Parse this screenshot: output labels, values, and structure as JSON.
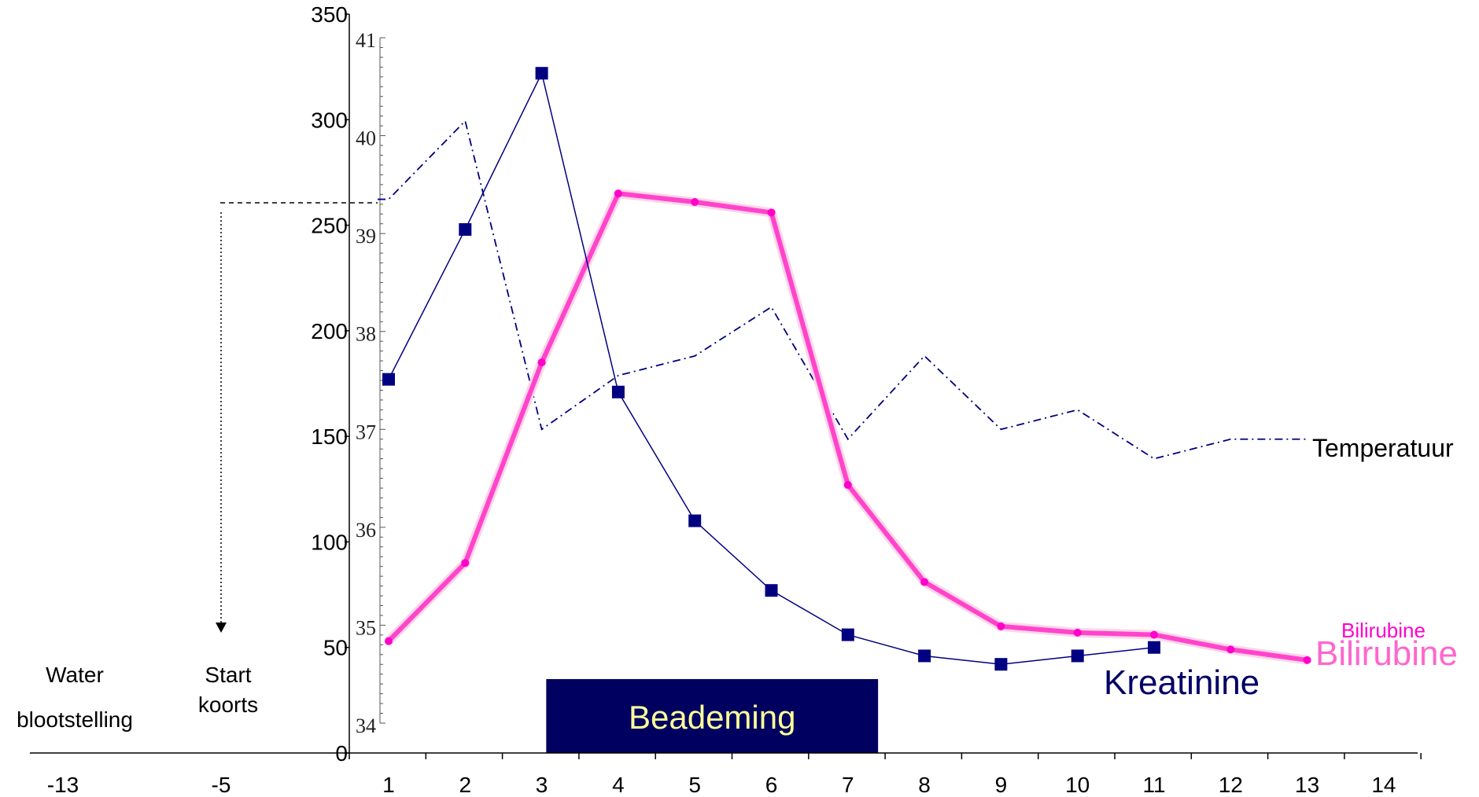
{
  "chart_data": {
    "type": "line",
    "x": [
      1,
      2,
      3,
      4,
      5,
      6,
      7,
      8,
      9,
      10,
      11,
      12,
      13
    ],
    "x_ticks": [
      "-13",
      "-5",
      "1",
      "2",
      "3",
      "4",
      "5",
      "6",
      "7",
      "8",
      "9",
      "10",
      "11",
      "12",
      "13",
      "14"
    ],
    "y_left": {
      "ticks": [
        "0",
        "50",
        "100",
        "150",
        "200",
        "250",
        "300",
        "350"
      ],
      "ylim": [
        0,
        350
      ]
    },
    "y_right": {
      "ticks": [
        "34",
        "35",
        "36",
        "37",
        "38",
        "39",
        "40",
        "41"
      ],
      "ylim": [
        34,
        41
      ]
    },
    "series": [
      {
        "name": "Kreatinine",
        "axis": "left",
        "color": "#000080",
        "x": [
          1,
          2,
          3,
          4,
          5,
          6,
          7,
          8,
          9,
          10,
          11
        ],
        "values": [
          177,
          248,
          322,
          171,
          110,
          77,
          56,
          46,
          42,
          46,
          50
        ]
      },
      {
        "name": "Bilirubine",
        "axis": "left",
        "color": "#ff44cc",
        "x": [
          1,
          2,
          3,
          4,
          5,
          6,
          7,
          8,
          9,
          10,
          11,
          12,
          13
        ],
        "values": [
          53,
          90,
          185,
          265,
          261,
          256,
          127,
          81,
          60,
          57,
          56,
          49,
          44
        ]
      },
      {
        "name": "Temperatuur",
        "axis": "right",
        "color": "#000080",
        "x": [
          0,
          1,
          2,
          3,
          4,
          5,
          6,
          7,
          8,
          9,
          10,
          11,
          12,
          13
        ],
        "values": [
          39.35,
          39.35,
          40.15,
          37.0,
          37.55,
          37.75,
          38.25,
          36.9,
          37.75,
          37.0,
          37.2,
          36.7,
          36.9,
          36.9
        ]
      }
    ],
    "labels": {
      "temperatuur": "Temperatuur",
      "bilirubine_small": "Bilirubine",
      "bilirubine_large": "Bilirubine",
      "kreatinine": "Kreatinine",
      "beademing": "Beademing",
      "water_line1": "Water",
      "water_line2": "blootstelling",
      "start_line1": "Start",
      "start_line2": "koorts"
    },
    "beademing_range": [
      3.1,
      7.25
    ]
  }
}
